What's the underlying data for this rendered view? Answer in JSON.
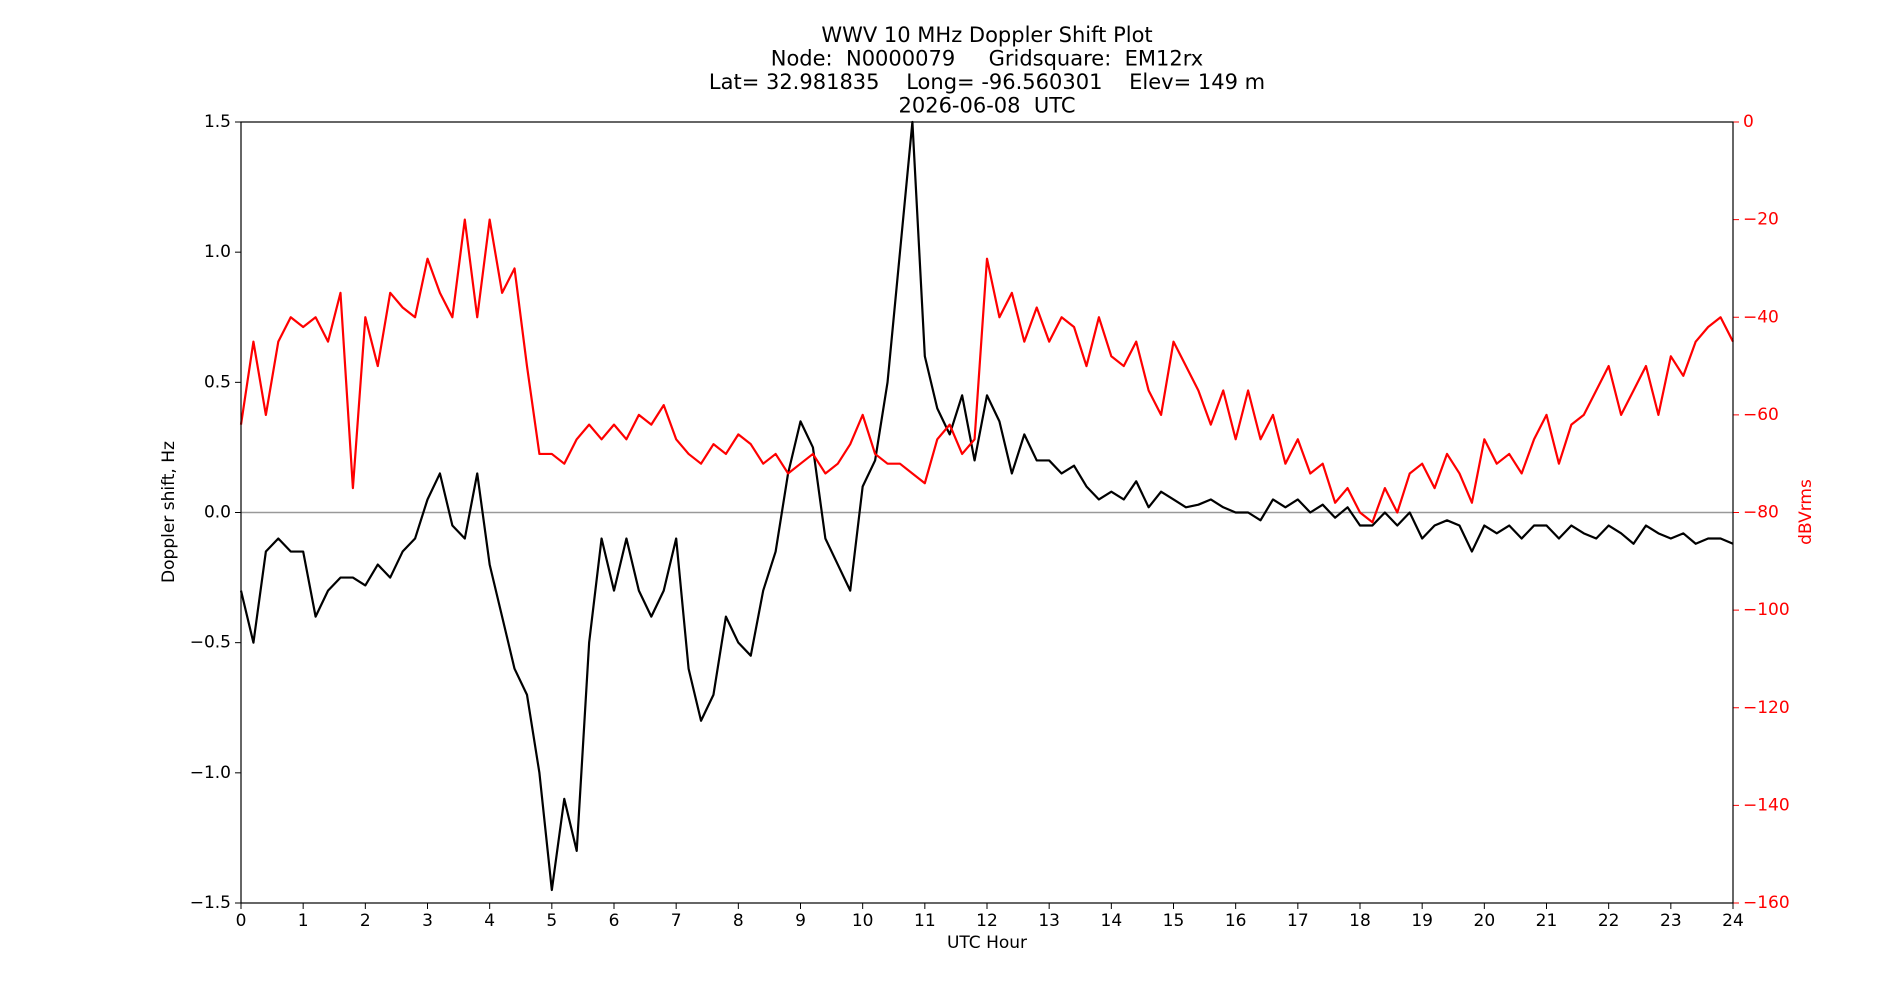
{
  "chart_data": {
    "type": "line",
    "title": [
      "WWV 10 MHz Doppler Shift Plot",
      "Node:  N0000079     Gridsquare:  EM12rx",
      "Lat= 32.981835    Long= -96.560301    Elev= 149 m",
      "2026-06-08  UTC"
    ],
    "xlabel": "UTC Hour",
    "ylabel": "Doppler shift, Hz",
    "y2label": "dBVrms",
    "xlim": [
      0,
      24
    ],
    "xticks": [
      0,
      1,
      2,
      3,
      4,
      5,
      6,
      7,
      8,
      9,
      10,
      11,
      12,
      13,
      14,
      15,
      16,
      17,
      18,
      19,
      20,
      21,
      22,
      23,
      24
    ],
    "ylim": [
      -1.5,
      1.5
    ],
    "yticks": [
      {
        "value": -1.5,
        "label": "−1.5"
      },
      {
        "value": -1.0,
        "label": "−1.0"
      },
      {
        "value": -0.5,
        "label": "−0.5"
      },
      {
        "value": 0,
        "label": "0.0"
      },
      0.5,
      {
        "value": 1.0,
        "label": "1.0"
      },
      {
        "value": 1.5,
        "label": "1.5"
      }
    ],
    "y2lim": [
      -160,
      0
    ],
    "y2ticks": [
      {
        "value": -160,
        "label": "−160"
      },
      {
        "value": -140,
        "label": "−140"
      },
      {
        "value": -120,
        "label": "−120"
      },
      {
        "value": -100,
        "label": "−100"
      },
      {
        "value": -80,
        "label": "−80"
      },
      {
        "value": -60,
        "label": "−60"
      },
      {
        "value": -40,
        "label": "−40"
      },
      {
        "value": -20,
        "label": "−20"
      },
      0
    ],
    "reference_line": 0,
    "reference_color": "#999999",
    "x": [
      0,
      0.2,
      0.4,
      0.6,
      0.8,
      1,
      1.2,
      1.4,
      1.6,
      1.8,
      2,
      2.2,
      2.4,
      2.6,
      2.8,
      3,
      3.2,
      3.4,
      3.6,
      3.8,
      4,
      4.2,
      4.4,
      4.6,
      4.8,
      5,
      5.2,
      5.4,
      5.6,
      5.8,
      6,
      6.2,
      6.4,
      6.6,
      6.8,
      7,
      7.2,
      7.4,
      7.6,
      7.8,
      8,
      8.2,
      8.4,
      8.6,
      8.8,
      9,
      9.2,
      9.4,
      9.6,
      9.8,
      10,
      10.2,
      10.4,
      10.6,
      10.8,
      11,
      11.2,
      11.4,
      11.6,
      11.8,
      12,
      12.2,
      12.4,
      12.6,
      12.8,
      13,
      13.2,
      13.4,
      13.6,
      13.8,
      14,
      14.2,
      14.4,
      14.6,
      14.8,
      15,
      15.2,
      15.4,
      15.6,
      15.8,
      16,
      16.2,
      16.4,
      16.6,
      16.8,
      17,
      17.2,
      17.4,
      17.6,
      17.8,
      18,
      18.2,
      18.4,
      18.6,
      18.8,
      19,
      19.2,
      19.4,
      19.6,
      19.8,
      20,
      20.2,
      20.4,
      20.6,
      20.8,
      21,
      21.2,
      21.4,
      21.6,
      21.8,
      22,
      22.2,
      22.4,
      22.6,
      22.8,
      23,
      23.2,
      23.4,
      23.6,
      23.8,
      24
    ],
    "series": [
      {
        "color": "#000000",
        "values": [
          -0.3,
          -0.5,
          -0.15,
          -0.1,
          -0.15,
          -0.15,
          -0.4,
          -0.3,
          -0.25,
          -0.25,
          -0.28,
          -0.2,
          -0.25,
          -0.15,
          -0.1,
          0.05,
          0.15,
          -0.05,
          -0.1,
          0.15,
          -0.2,
          -0.4,
          -0.6,
          -0.7,
          -1.0,
          -1.45,
          -1.1,
          -1.3,
          -0.5,
          -0.1,
          -0.3,
          -0.1,
          -0.3,
          -0.4,
          -0.3,
          -0.1,
          -0.6,
          -0.8,
          -0.7,
          -0.4,
          -0.5,
          -0.55,
          -0.3,
          -0.15,
          0.15,
          0.35,
          0.25,
          -0.1,
          -0.2,
          -0.3,
          0.1,
          0.2,
          0.5,
          1.0,
          1.5,
          0.6,
          0.4,
          0.3,
          0.45,
          0.2,
          0.45,
          0.35,
          0.15,
          0.3,
          0.2,
          0.2,
          0.15,
          0.18,
          0.1,
          0.05,
          0.08,
          0.05,
          0.12,
          0.02,
          0.08,
          0.05,
          0.02,
          0.03,
          0.05,
          0.02,
          0.0,
          0.0,
          -0.03,
          0.05,
          0.02,
          0.05,
          0.0,
          0.03,
          -0.02,
          0.02,
          -0.05,
          -0.05,
          0.0,
          -0.05,
          0.0,
          -0.1,
          -0.05,
          -0.03,
          -0.05,
          -0.15,
          -0.05,
          -0.08,
          -0.05,
          -0.1,
          -0.05,
          -0.05,
          -0.1,
          -0.05,
          -0.08,
          -0.1,
          -0.05,
          -0.08,
          -0.12,
          -0.05,
          -0.08,
          -0.1,
          -0.08,
          -0.12,
          -0.1,
          -0.1,
          -0.12
        ]
      },
      {
        "color": "#ff0000",
        "axis": "y2",
        "values": [
          -62,
          -45,
          -60,
          -45,
          -40,
          -42,
          -40,
          -45,
          -35,
          -75,
          -40,
          -50,
          -35,
          -38,
          -40,
          -28,
          -35,
          -40,
          -20,
          -40,
          -20,
          -35,
          -30,
          -50,
          -68,
          -68,
          -70,
          -65,
          -62,
          -65,
          -62,
          -65,
          -60,
          -62,
          -58,
          -65,
          -68,
          -70,
          -66,
          -68,
          -64,
          -66,
          -70,
          -68,
          -72,
          -70,
          -68,
          -72,
          -70,
          -66,
          -60,
          -68,
          -70,
          -70,
          -72,
          -74,
          -65,
          -62,
          -68,
          -65,
          -28,
          -40,
          -35,
          -45,
          -38,
          -45,
          -40,
          -42,
          -50,
          -40,
          -48,
          -50,
          -45,
          -55,
          -60,
          -45,
          -50,
          -55,
          -62,
          -55,
          -65,
          -55,
          -65,
          -60,
          -70,
          -65,
          -72,
          -70,
          -78,
          -75,
          -80,
          -82,
          -75,
          -80,
          -72,
          -70,
          -75,
          -68,
          -72,
          -78,
          -65,
          -70,
          -68,
          -72,
          -65,
          -60,
          -70,
          -62,
          -60,
          -55,
          -50,
          -60,
          -55,
          -50,
          -60,
          -48,
          -52,
          -45,
          -42,
          -40,
          -45
        ]
      }
    ]
  }
}
